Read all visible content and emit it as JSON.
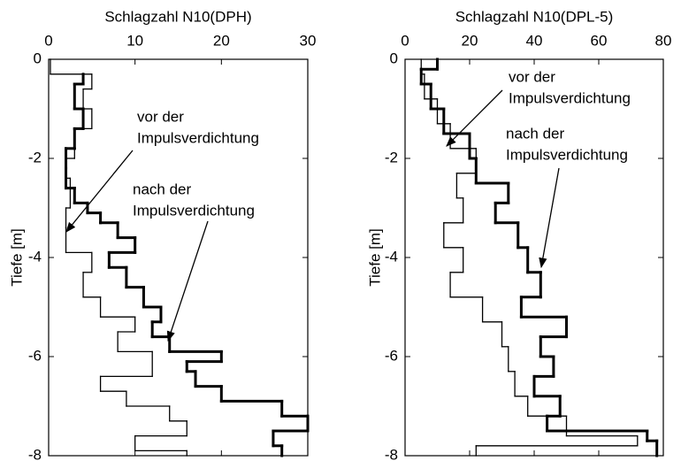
{
  "chart_data": [
    {
      "type": "step-profile",
      "title": "Schlagzahl N10(DPH)",
      "y_label": "Tiefe [m]",
      "xlim": [
        0,
        30
      ],
      "xticks": [
        0,
        10,
        20,
        30
      ],
      "ylim": [
        0,
        -8
      ],
      "yticks": [
        0,
        -2,
        -4,
        -6,
        -8
      ],
      "annotations": [
        [
          "vor der",
          "Impulsverdichtung"
        ],
        [
          "nach der",
          "Impulsverdichtung"
        ]
      ],
      "series": [
        {
          "color": "#000000",
          "width": 1.3,
          "values": [
            0.2,
            5,
            4,
            5,
            3,
            2,
            2.5,
            2,
            2,
            5,
            4,
            6,
            10,
            8,
            12,
            6,
            9,
            14,
            16,
            10,
            16
          ],
          "depth_edges": [
            0,
            -0.3,
            -0.6,
            -1.0,
            -1.4,
            -2.0,
            -2.4,
            -3.0,
            -3.4,
            -3.9,
            -4.3,
            -4.8,
            -5.2,
            -5.5,
            -5.9,
            -6.4,
            -6.7,
            -7.0,
            -7.3,
            -7.6,
            -7.9,
            -8.0
          ]
        },
        {
          "color": "#000000",
          "width": 3,
          "values": [
            4,
            3,
            4,
            3,
            2,
            2,
            3,
            4.5,
            6,
            8,
            10,
            7,
            9,
            11,
            13,
            12,
            14,
            20,
            16,
            17,
            20,
            27,
            30,
            26,
            27
          ],
          "depth_edges": [
            -0.3,
            -0.5,
            -1.0,
            -1.4,
            -1.8,
            -2.2,
            -2.6,
            -2.9,
            -3.1,
            -3.3,
            -3.6,
            -3.9,
            -4.2,
            -4.6,
            -5.0,
            -5.3,
            -5.6,
            -5.9,
            -6.1,
            -6.3,
            -6.6,
            -6.9,
            -7.2,
            -7.5,
            -7.8,
            -8.0
          ]
        }
      ]
    },
    {
      "type": "step-profile",
      "title": "Schlagzahl N10(DPL-5)",
      "y_label": "Tiefe [m]",
      "xlim": [
        0,
        80
      ],
      "xticks": [
        0,
        20,
        40,
        60,
        80
      ],
      "ylim": [
        0,
        -8
      ],
      "yticks": [
        0,
        -2,
        -4,
        -6,
        -8
      ],
      "annotations": [
        [
          "vor der",
          "Impulsverdichtung"
        ],
        [
          "nach der",
          "Impulsverdichtung"
        ]
      ],
      "series": [
        {
          "color": "#000000",
          "width": 1.3,
          "values": [
            5,
            6,
            10,
            14,
            22,
            16,
            18,
            12,
            18,
            14,
            24,
            30,
            32,
            34,
            38,
            50,
            72,
            22
          ],
          "depth_edges": [
            0,
            -0.3,
            -0.8,
            -1.3,
            -1.8,
            -2.3,
            -2.8,
            -3.3,
            -3.8,
            -4.3,
            -4.8,
            -5.3,
            -5.8,
            -6.3,
            -6.8,
            -7.2,
            -7.6,
            -7.8,
            -8.0
          ]
        },
        {
          "color": "#000000",
          "width": 3,
          "values": [
            10,
            5,
            8,
            12,
            20,
            22,
            32,
            28,
            35,
            38,
            42,
            36,
            50,
            42,
            46,
            40,
            48,
            44,
            75,
            78
          ],
          "depth_edges": [
            0,
            -0.2,
            -0.5,
            -1.0,
            -1.5,
            -2.0,
            -2.5,
            -2.9,
            -3.3,
            -3.8,
            -4.3,
            -4.8,
            -5.2,
            -5.6,
            -6.0,
            -6.4,
            -6.8,
            -7.2,
            -7.5,
            -7.7,
            -8.0
          ]
        }
      ]
    }
  ]
}
